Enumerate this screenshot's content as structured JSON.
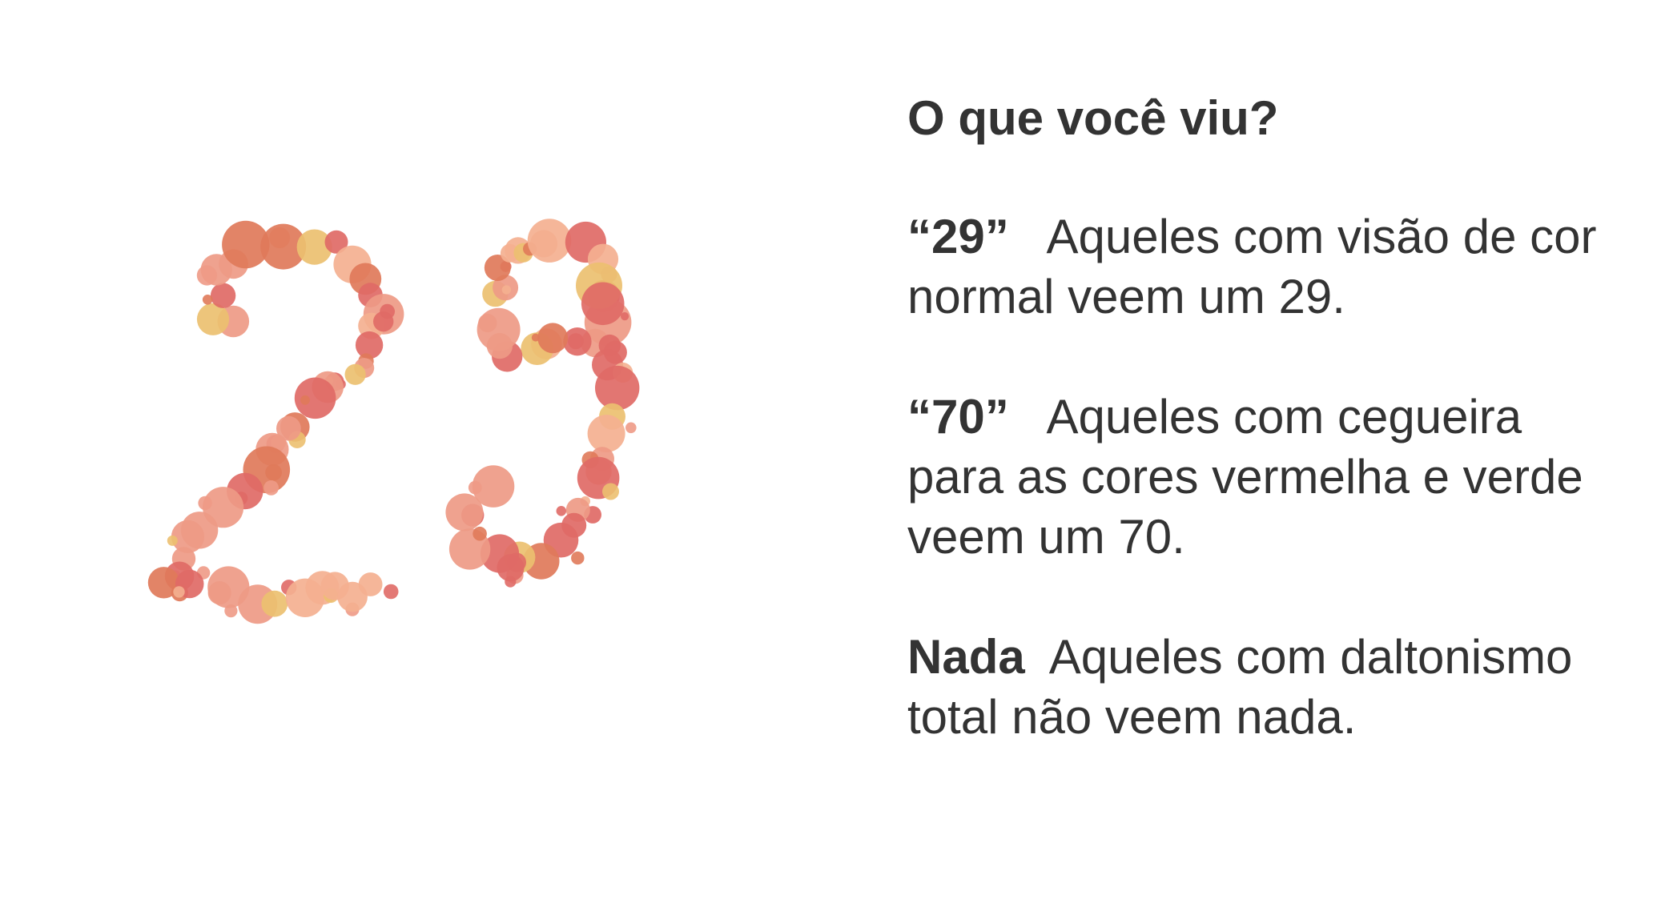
{
  "plate": {
    "number": "29",
    "colors": {
      "dot_red": "#e06a66",
      "dot_salmon": "#ee9a86",
      "dot_peach": "#f4b090",
      "dot_orange": "#e07a5a",
      "dot_yellow": "#ecc070"
    }
  },
  "panel": {
    "heading": "O que você viu?",
    "answers": [
      {
        "key": "“29”",
        "text": "Aqueles com visão de cor normal veem um 29."
      },
      {
        "key": "“70”",
        "text": "Aqueles com cegueira para as cores vermelha e verde veem um 70."
      },
      {
        "key": "Nada",
        "text": "Aqueles com daltonismo total não veem nada."
      }
    ]
  }
}
